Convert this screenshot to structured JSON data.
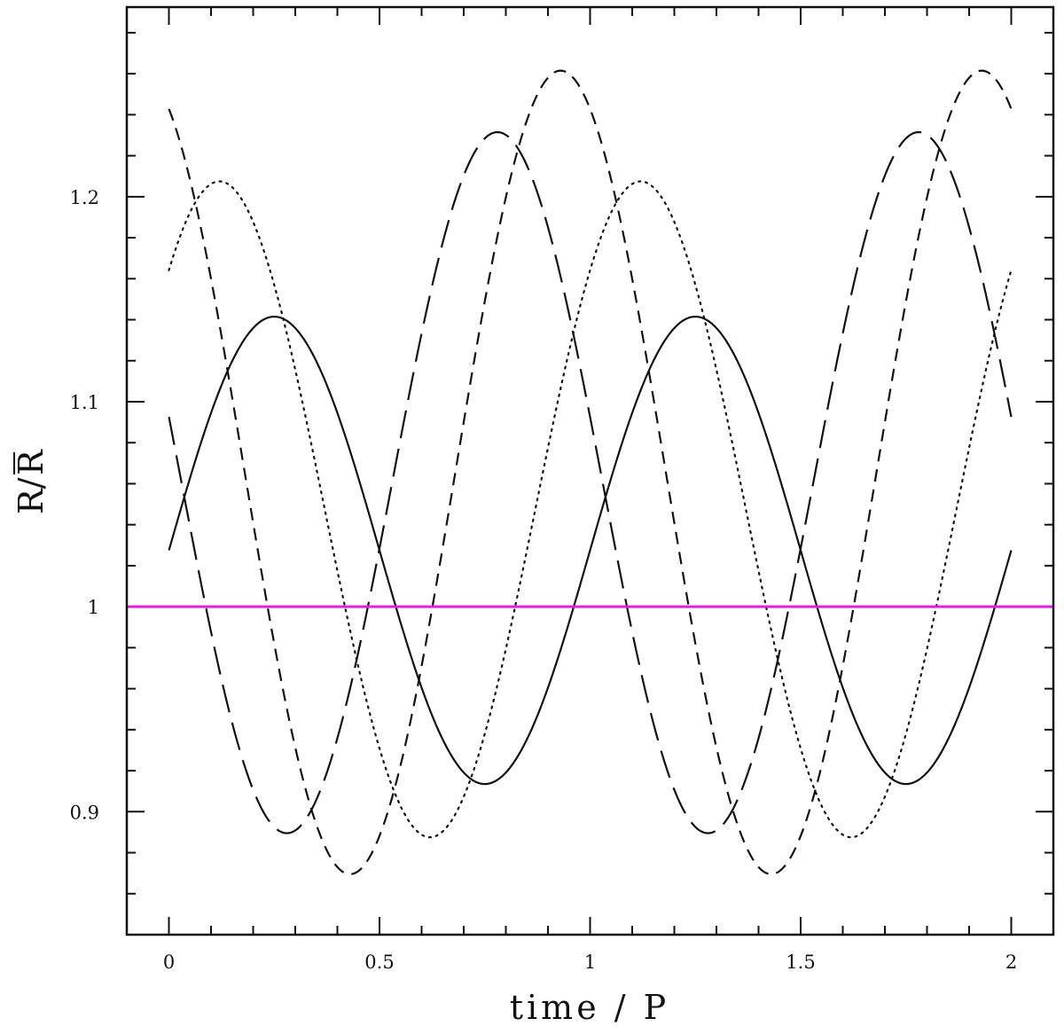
{
  "chart_data": {
    "type": "line",
    "title": "",
    "xlabel": "time / P",
    "ylabel_main": "R/",
    "ylabel_bar": "R",
    "xlim": [
      -0.1,
      2.1
    ],
    "ylim": [
      0.84,
      1.2925
    ],
    "x_ticks": [
      {
        "v": 0,
        "label": "0"
      },
      {
        "v": 0.5,
        "label": "0.5"
      },
      {
        "v": 1,
        "label": "1"
      },
      {
        "v": 1.5,
        "label": "1.5"
      },
      {
        "v": 2,
        "label": "2"
      }
    ],
    "y_ticks": [
      {
        "v": 0.9,
        "label": "0.9"
      },
      {
        "v": 1.0,
        "label": "1"
      },
      {
        "v": 1.1,
        "label": "1.1"
      },
      {
        "v": 1.2,
        "label": "1.2"
      }
    ],
    "grid": false,
    "reference_line": {
      "y": 1.0,
      "color": "#e020e0"
    },
    "series": [
      {
        "style": "solid",
        "mean": 1.0275,
        "amplitude": 0.114,
        "peak_phase": 0.25,
        "x_range": [
          0,
          2
        ]
      },
      {
        "style": "dotted",
        "mean": 1.0475,
        "amplitude": 0.16,
        "peak_phase": 0.12,
        "x_range": [
          0,
          2
        ]
      },
      {
        "style": "short-dash",
        "mean": 1.0655,
        "amplitude": 0.196,
        "peak_phase": 0.93,
        "x_range": [
          0,
          2
        ]
      },
      {
        "style": "long-dash",
        "mean": 1.0605,
        "amplitude": 0.171,
        "peak_phase": 0.78,
        "x_range": [
          0,
          2
        ]
      }
    ]
  }
}
